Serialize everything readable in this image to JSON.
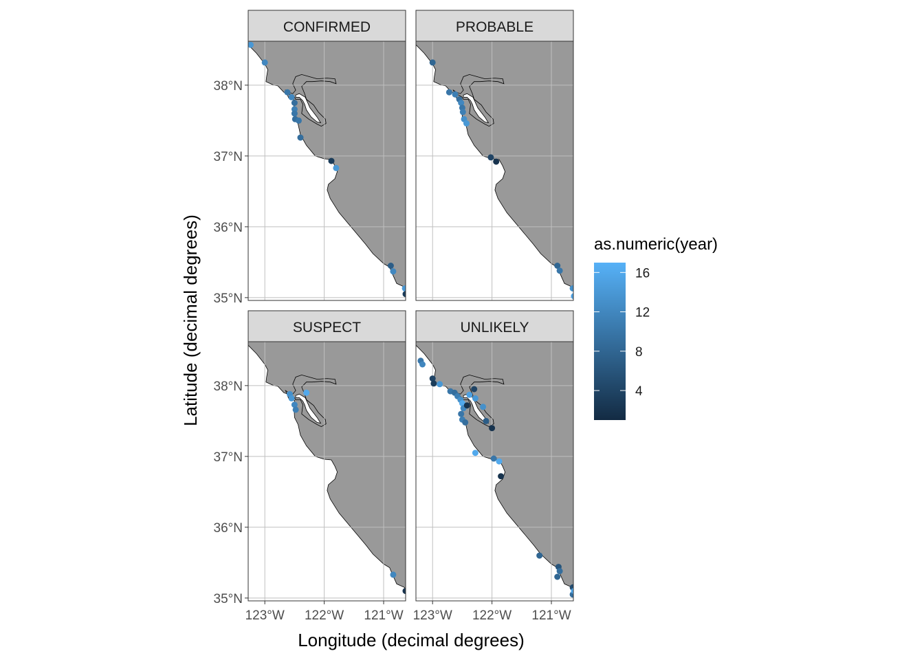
{
  "chart_data": {
    "type": "scatter",
    "map": "faceted point map over coastline (central California)",
    "x_axis": {
      "label": "Longitude (decimal degrees)",
      "range": [
        -123.28,
        -120.63
      ],
      "ticks": [
        {
          "value": -123,
          "label": "123°W"
        },
        {
          "value": -122,
          "label": "122°W"
        },
        {
          "value": -121,
          "label": "121°W"
        }
      ]
    },
    "y_axis": {
      "label": "Latitude (decimal degrees)",
      "range": [
        34.96,
        38.62
      ],
      "ticks": [
        {
          "value": 35,
          "label": "35°N"
        },
        {
          "value": 36,
          "label": "36°N"
        },
        {
          "value": 37,
          "label": "37°N"
        },
        {
          "value": 38,
          "label": "38°N"
        }
      ]
    },
    "grid": true,
    "land_color": "#999999",
    "water_color": "#ffffff",
    "legend": {
      "title": "as.numeric(year)",
      "placement": "right",
      "breaks": [
        16,
        12,
        8,
        4
      ],
      "range": [
        1,
        17
      ],
      "low_color": "#132B43",
      "high_color": "#56B1F7"
    },
    "facets": [
      {
        "label": "CONFIRMED",
        "points": [
          [
            -123.24,
            38.57,
            14
          ],
          [
            -123.0,
            38.32,
            12
          ],
          [
            -122.62,
            37.9,
            10
          ],
          [
            -122.55,
            37.83,
            12
          ],
          [
            -122.5,
            37.75,
            9
          ],
          [
            -122.5,
            37.66,
            11
          ],
          [
            -122.5,
            37.6,
            10
          ],
          [
            -122.49,
            37.52,
            9
          ],
          [
            -122.43,
            37.5,
            10
          ],
          [
            -122.4,
            37.26,
            9
          ],
          [
            -121.88,
            36.93,
            3
          ],
          [
            -121.8,
            36.83,
            14
          ],
          [
            -120.88,
            35.45,
            7
          ],
          [
            -120.84,
            35.37,
            12
          ],
          [
            -120.64,
            35.13,
            14
          ],
          [
            -120.63,
            35.05,
            3
          ]
        ]
      },
      {
        "label": "PROBABLE",
        "points": [
          [
            -123.0,
            38.32,
            8
          ],
          [
            -122.72,
            37.9,
            10
          ],
          [
            -122.62,
            37.87,
            11
          ],
          [
            -122.55,
            37.8,
            9
          ],
          [
            -122.52,
            37.75,
            12
          ],
          [
            -122.5,
            37.68,
            10
          ],
          [
            -122.49,
            37.62,
            11
          ],
          [
            -122.47,
            37.52,
            13
          ],
          [
            -122.43,
            37.46,
            14
          ],
          [
            -122.02,
            36.98,
            4
          ],
          [
            -121.93,
            36.92,
            2
          ],
          [
            -120.9,
            35.45,
            8
          ],
          [
            -120.86,
            35.38,
            10
          ],
          [
            -120.64,
            35.13,
            13
          ],
          [
            -120.62,
            35.02,
            15
          ]
        ]
      },
      {
        "label": "SUSPECT",
        "points": [
          [
            -122.58,
            37.88,
            13
          ],
          [
            -122.55,
            37.82,
            14
          ],
          [
            -122.5,
            37.73,
            12
          ],
          [
            -122.48,
            37.66,
            11
          ],
          [
            -122.3,
            37.9,
            16
          ],
          [
            -120.84,
            35.33,
            12
          ],
          [
            -120.63,
            35.1,
            2
          ]
        ]
      },
      {
        "label": "UNLIKELY",
        "points": [
          [
            -123.2,
            38.35,
            10
          ],
          [
            -123.17,
            38.3,
            12
          ],
          [
            -123.0,
            38.1,
            4
          ],
          [
            -122.98,
            38.03,
            3
          ],
          [
            -122.88,
            38.02,
            14
          ],
          [
            -122.7,
            37.92,
            10
          ],
          [
            -122.63,
            37.9,
            9
          ],
          [
            -122.58,
            37.85,
            11
          ],
          [
            -122.53,
            37.8,
            13
          ],
          [
            -122.5,
            37.75,
            16
          ],
          [
            -122.48,
            37.68,
            12
          ],
          [
            -122.52,
            37.6,
            10
          ],
          [
            -122.5,
            37.52,
            11
          ],
          [
            -122.45,
            37.48,
            9
          ],
          [
            -122.42,
            37.72,
            2
          ],
          [
            -122.28,
            37.82,
            14
          ],
          [
            -122.38,
            37.87,
            15
          ],
          [
            -122.3,
            37.95,
            4
          ],
          [
            -122.15,
            37.7,
            13
          ],
          [
            -122.1,
            37.5,
            7
          ],
          [
            -122.0,
            37.4,
            2
          ],
          [
            -122.28,
            37.05,
            16
          ],
          [
            -121.97,
            36.97,
            10
          ],
          [
            -121.88,
            36.93,
            16
          ],
          [
            -121.85,
            36.72,
            2
          ],
          [
            -121.2,
            35.6,
            8
          ],
          [
            -120.88,
            35.44,
            6
          ],
          [
            -120.86,
            35.38,
            9
          ],
          [
            -120.9,
            35.3,
            8
          ],
          [
            -120.64,
            35.15,
            5
          ],
          [
            -120.64,
            35.05,
            9
          ],
          [
            -120.62,
            35.1,
            16
          ]
        ]
      }
    ]
  }
}
